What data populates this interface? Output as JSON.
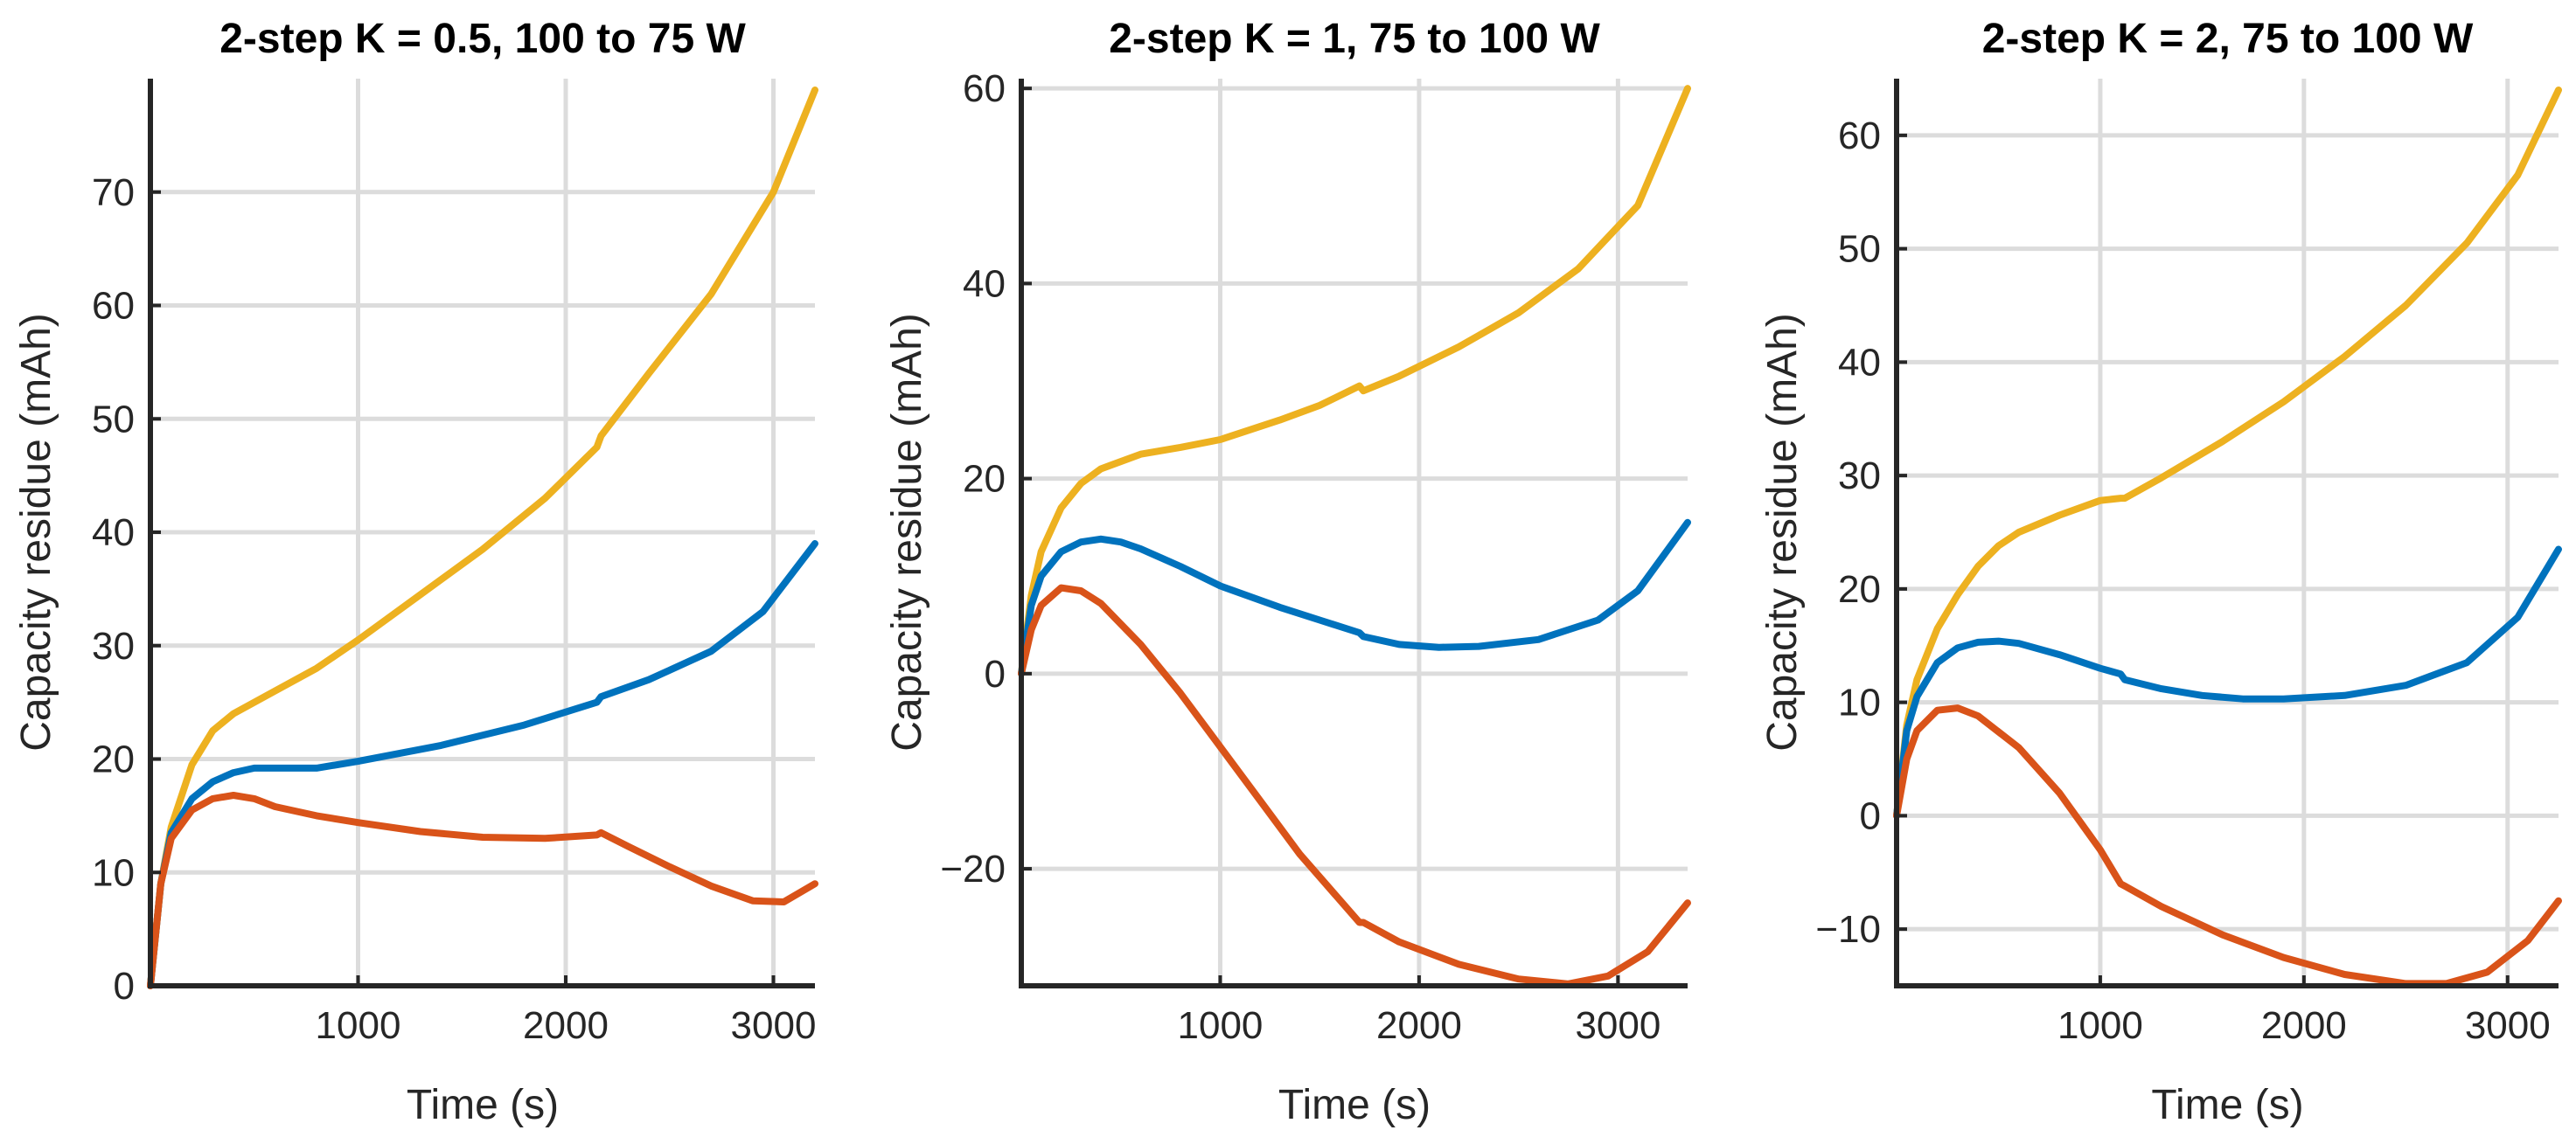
{
  "chart_data": [
    {
      "type": "line",
      "title": "2-step K = 0.5, 100 to 75 W",
      "xlabel": "Time (s)",
      "ylabel": "Capacity residue (mAh)",
      "xlim": [
        0,
        3200
      ],
      "ylim": [
        0,
        80
      ],
      "xticks": [
        1000,
        2000,
        3000
      ],
      "yticks": [
        0,
        10,
        20,
        30,
        40,
        50,
        60,
        70
      ],
      "xtick_labels": [
        "1000",
        "2000",
        "3000"
      ],
      "ytick_labels": [
        "0",
        "10",
        "20",
        "30",
        "40",
        "50",
        "60",
        "70"
      ],
      "grid": true,
      "series": [
        {
          "name": "yellow",
          "color": "#EDB120",
          "points": [
            [
              0,
              0
            ],
            [
              50,
              9
            ],
            [
              100,
              14
            ],
            [
              200,
              19.5
            ],
            [
              300,
              22.5
            ],
            [
              400,
              24
            ],
            [
              600,
              26
            ],
            [
              800,
              28
            ],
            [
              1000,
              30.5
            ],
            [
              1300,
              34.5
            ],
            [
              1600,
              38.5
            ],
            [
              1900,
              43
            ],
            [
              2150,
              47.5
            ],
            [
              2170,
              48.5
            ],
            [
              2400,
              54
            ],
            [
              2700,
              61
            ],
            [
              3000,
              70
            ],
            [
              3200,
              79
            ]
          ]
        },
        {
          "name": "blue",
          "color": "#0072BD",
          "points": [
            [
              0,
              0
            ],
            [
              50,
              9
            ],
            [
              100,
              13.5
            ],
            [
              200,
              16.5
            ],
            [
              300,
              18
            ],
            [
              400,
              18.8
            ],
            [
              500,
              19.2
            ],
            [
              600,
              19.2
            ],
            [
              800,
              19.2
            ],
            [
              1000,
              19.8
            ],
            [
              1400,
              21.2
            ],
            [
              1800,
              23
            ],
            [
              2150,
              25
            ],
            [
              2170,
              25.5
            ],
            [
              2400,
              27
            ],
            [
              2700,
              29.5
            ],
            [
              2950,
              33
            ],
            [
              3200,
              39
            ]
          ]
        },
        {
          "name": "orange",
          "color": "#D95319",
          "points": [
            [
              0,
              0
            ],
            [
              50,
              9
            ],
            [
              100,
              13
            ],
            [
              200,
              15.5
            ],
            [
              300,
              16.5
            ],
            [
              400,
              16.8
            ],
            [
              500,
              16.5
            ],
            [
              600,
              15.8
            ],
            [
              800,
              15
            ],
            [
              1000,
              14.4
            ],
            [
              1300,
              13.6
            ],
            [
              1600,
              13.1
            ],
            [
              1900,
              13
            ],
            [
              2150,
              13.3
            ],
            [
              2170,
              13.5
            ],
            [
              2300,
              12.3
            ],
            [
              2500,
              10.5
            ],
            [
              2700,
              8.8
            ],
            [
              2900,
              7.5
            ],
            [
              3050,
              7.4
            ],
            [
              3200,
              9
            ]
          ]
        }
      ]
    },
    {
      "type": "line",
      "title": "2-step K = 1, 75 to 100 W",
      "xlabel": "Time (s)",
      "ylabel": "Capacity residue (mAh)",
      "xlim": [
        0,
        3350
      ],
      "ylim": [
        -32,
        61
      ],
      "xticks": [
        1000,
        2000,
        3000
      ],
      "yticks": [
        -20,
        0,
        20,
        40,
        60
      ],
      "xtick_labels": [
        "1000",
        "2000",
        "3000"
      ],
      "ytick_labels": [
        "−20",
        "0",
        "20",
        "40",
        "60"
      ],
      "grid": true,
      "series": [
        {
          "name": "yellow",
          "color": "#EDB120",
          "points": [
            [
              0,
              0
            ],
            [
              50,
              8
            ],
            [
              100,
              12.5
            ],
            [
              200,
              17
            ],
            [
              300,
              19.5
            ],
            [
              400,
              21
            ],
            [
              600,
              22.5
            ],
            [
              800,
              23.2
            ],
            [
              1000,
              24
            ],
            [
              1300,
              26
            ],
            [
              1500,
              27.5
            ],
            [
              1700,
              29.5
            ],
            [
              1720,
              29
            ],
            [
              1900,
              30.5
            ],
            [
              2200,
              33.5
            ],
            [
              2500,
              37
            ],
            [
              2800,
              41.5
            ],
            [
              3100,
              48
            ],
            [
              3350,
              60
            ]
          ]
        },
        {
          "name": "blue",
          "color": "#0072BD",
          "points": [
            [
              0,
              0
            ],
            [
              50,
              7
            ],
            [
              100,
              10
            ],
            [
              200,
              12.5
            ],
            [
              300,
              13.5
            ],
            [
              400,
              13.8
            ],
            [
              500,
              13.5
            ],
            [
              600,
              12.8
            ],
            [
              800,
              11
            ],
            [
              1000,
              9
            ],
            [
              1300,
              6.8
            ],
            [
              1500,
              5.5
            ],
            [
              1700,
              4.2
            ],
            [
              1720,
              3.8
            ],
            [
              1900,
              3
            ],
            [
              2100,
              2.7
            ],
            [
              2300,
              2.8
            ],
            [
              2600,
              3.5
            ],
            [
              2900,
              5.5
            ],
            [
              3100,
              8.5
            ],
            [
              3350,
              15.5
            ]
          ]
        },
        {
          "name": "orange",
          "color": "#D95319",
          "points": [
            [
              0,
              0
            ],
            [
              50,
              4.5
            ],
            [
              100,
              7
            ],
            [
              200,
              8.8
            ],
            [
              300,
              8.5
            ],
            [
              400,
              7.2
            ],
            [
              600,
              3
            ],
            [
              800,
              -2
            ],
            [
              1000,
              -7.5
            ],
            [
              1200,
              -13
            ],
            [
              1400,
              -18.5
            ],
            [
              1700,
              -25.5
            ],
            [
              1720,
              -25.5
            ],
            [
              1900,
              -27.5
            ],
            [
              2200,
              -29.8
            ],
            [
              2500,
              -31.3
            ],
            [
              2750,
              -31.8
            ],
            [
              2950,
              -31
            ],
            [
              3150,
              -28.5
            ],
            [
              3350,
              -23.5
            ]
          ]
        }
      ]
    },
    {
      "type": "line",
      "title": "2-step K = 2, 75 to 100 W",
      "xlabel": "Time (s)",
      "ylabel": "Capacity residue (mAh)",
      "xlim": [
        0,
        3250
      ],
      "ylim": [
        -15,
        65
      ],
      "xticks": [
        1000,
        2000,
        3000
      ],
      "yticks": [
        -10,
        0,
        10,
        20,
        30,
        40,
        50,
        60
      ],
      "xtick_labels": [
        "1000",
        "2000",
        "3000"
      ],
      "ytick_labels": [
        "−10",
        "0",
        "10",
        "20",
        "30",
        "40",
        "50",
        "60"
      ],
      "grid": true,
      "series": [
        {
          "name": "yellow",
          "color": "#EDB120",
          "points": [
            [
              0,
              0
            ],
            [
              50,
              8
            ],
            [
              100,
              12
            ],
            [
              200,
              16.5
            ],
            [
              300,
              19.5
            ],
            [
              400,
              22
            ],
            [
              500,
              23.8
            ],
            [
              600,
              25
            ],
            [
              800,
              26.5
            ],
            [
              1000,
              27.8
            ],
            [
              1100,
              28
            ],
            [
              1120,
              28
            ],
            [
              1300,
              29.8
            ],
            [
              1600,
              33
            ],
            [
              1900,
              36.5
            ],
            [
              2200,
              40.5
            ],
            [
              2500,
              45
            ],
            [
              2800,
              50.5
            ],
            [
              3050,
              56.5
            ],
            [
              3250,
              64
            ]
          ]
        },
        {
          "name": "blue",
          "color": "#0072BD",
          "points": [
            [
              0,
              0
            ],
            [
              50,
              7.5
            ],
            [
              100,
              10.5
            ],
            [
              200,
              13.5
            ],
            [
              300,
              14.8
            ],
            [
              400,
              15.3
            ],
            [
              500,
              15.4
            ],
            [
              600,
              15.2
            ],
            [
              800,
              14.2
            ],
            [
              1000,
              13
            ],
            [
              1100,
              12.5
            ],
            [
              1120,
              12
            ],
            [
              1300,
              11.2
            ],
            [
              1500,
              10.6
            ],
            [
              1700,
              10.3
            ],
            [
              1900,
              10.3
            ],
            [
              2200,
              10.6
            ],
            [
              2500,
              11.5
            ],
            [
              2800,
              13.5
            ],
            [
              3050,
              17.5
            ],
            [
              3250,
              23.5
            ]
          ]
        },
        {
          "name": "orange",
          "color": "#D95319",
          "points": [
            [
              0,
              0
            ],
            [
              50,
              5
            ],
            [
              100,
              7.5
            ],
            [
              200,
              9.3
            ],
            [
              300,
              9.5
            ],
            [
              400,
              8.8
            ],
            [
              600,
              6
            ],
            [
              800,
              2
            ],
            [
              1000,
              -3
            ],
            [
              1100,
              -6
            ],
            [
              1120,
              -6.2
            ],
            [
              1300,
              -8
            ],
            [
              1600,
              -10.5
            ],
            [
              1900,
              -12.5
            ],
            [
              2200,
              -14
            ],
            [
              2500,
              -14.8
            ],
            [
              2700,
              -14.8
            ],
            [
              2900,
              -13.8
            ],
            [
              3100,
              -11
            ],
            [
              3250,
              -7.5
            ]
          ]
        }
      ]
    }
  ]
}
